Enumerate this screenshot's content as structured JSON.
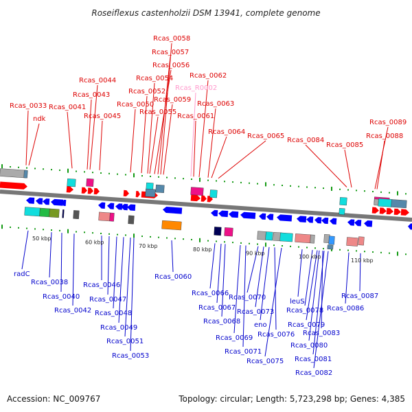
{
  "title": "Roseiflexus castenholzii DSM 13941, complete genome",
  "footer": {
    "accession": "Accession: NC_009767",
    "stats": "Topology: circular; Length: 5,723,298 bp; Genes: 4,385"
  },
  "colors": {
    "forward_label": "#dd0000",
    "reverse_label": "#0000cc",
    "rna_label": "#ff99cc",
    "backbone": "#777777",
    "tick": "#119911"
  },
  "kbp_labels": [
    "50 kbp",
    "60 kbp",
    "70 kbp",
    "80 kbp",
    "90 kbp",
    "100 kbp",
    "110 kbp"
  ],
  "top_labels": [
    "Rcas_0033",
    "ndk",
    "Rcas_0041",
    "Rcas_0043",
    "Rcas_0044",
    "Rcas_0045",
    "Rcas_0050",
    "Rcas_0052",
    "Rcas_0054",
    "Rcas_0055",
    "Rcas_0056",
    "Rcas_0057",
    "Rcas_0058",
    "Rcas_0059",
    "Rcas_R0002",
    "Rcas_0061",
    "Rcas_0062",
    "Rcas_0063",
    "Rcas_0064",
    "Rcas_0065",
    "Rcas_0084",
    "Rcas_0085",
    "Rcas_0088",
    "Rcas_0089"
  ],
  "bottom_labels": [
    "radC",
    "Rcas_0038",
    "Rcas_0040",
    "Rcas_0042",
    "Rcas_0046",
    "Rcas_0047",
    "Rcas_0048",
    "Rcas_0049",
    "Rcas_0051",
    "Rcas_0053",
    "Rcas_0060",
    "Rcas_0066",
    "Rcas_0067",
    "Rcas_0068",
    "Rcas_0069",
    "Rcas_0070",
    "Rcas_0071",
    "eno",
    "Rcas_0073",
    "Rcas_0075",
    "Rcas_0076",
    "leuS",
    "Rcas_0078",
    "Rcas_0079",
    "Rcas_0080",
    "Rcas_0081",
    "Rcas_0082",
    "Rcas_0083",
    "Rcas_0086",
    "Rcas_0087"
  ]
}
